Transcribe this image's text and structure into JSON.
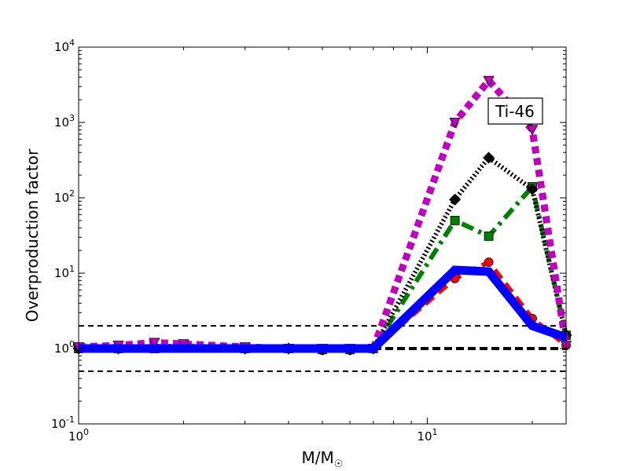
{
  "chart_data": {
    "type": "line",
    "title": "",
    "xlabel": "M/M",
    "xlabel_subscript": "☉",
    "ylabel": "Overproduction factor",
    "x_scale": "log",
    "y_scale": "log",
    "xlim": [
      1,
      25
    ],
    "ylim": [
      0.1,
      10000
    ],
    "x_ticks": [
      {
        "value": 1,
        "base": "10",
        "exp": "0"
      },
      {
        "value": 10,
        "base": "10",
        "exp": "1"
      }
    ],
    "y_ticks": [
      {
        "value": 0.1,
        "base": "10",
        "exp": "-1"
      },
      {
        "value": 1,
        "base": "10",
        "exp": "0"
      },
      {
        "value": 10,
        "base": "10",
        "exp": "1"
      },
      {
        "value": 100,
        "base": "10",
        "exp": "2"
      },
      {
        "value": 1000,
        "base": "10",
        "exp": "3"
      },
      {
        "value": 10000,
        "base": "10",
        "exp": "4"
      }
    ],
    "annotation": "Ti-46",
    "grid": false,
    "reference_lines": [
      {
        "y": 2.0,
        "style": "dashed"
      },
      {
        "y": 1.0,
        "style": "dashed-thick"
      },
      {
        "y": 0.5,
        "style": "dashed"
      }
    ],
    "series": [
      {
        "color": "#ff0000",
        "style": "dashed",
        "marker": "circle",
        "x": [
          1,
          1.3,
          1.65,
          2,
          3,
          4,
          5,
          6,
          7,
          12,
          15,
          20,
          25
        ],
        "y": [
          1.0,
          1.0,
          1.05,
          1.05,
          1.0,
          1.0,
          0.95,
          0.95,
          1.0,
          8.5,
          14,
          2.5,
          1.1
        ]
      },
      {
        "color": "#008000",
        "style": "dashdot",
        "marker": "square",
        "x": [
          1,
          1.3,
          1.65,
          2,
          3,
          4,
          5,
          6,
          7,
          12,
          15,
          20,
          25
        ],
        "y": [
          1.0,
          1.0,
          1.0,
          1.05,
          1.0,
          1.0,
          0.97,
          0.97,
          1.0,
          50,
          31,
          140,
          1.5
        ]
      },
      {
        "color": "#000000",
        "style": "dotted",
        "marker": "diamond",
        "x": [
          1,
          1.3,
          1.65,
          2,
          3,
          4,
          5,
          6,
          7,
          12,
          15,
          20,
          25
        ],
        "y": [
          1.0,
          1.0,
          1.05,
          1.1,
          1.0,
          1.0,
          0.97,
          0.97,
          1.0,
          95,
          340,
          130,
          1.5
        ]
      },
      {
        "color": "#bf00bf",
        "style": "dotted-thick",
        "marker": "triangle-down",
        "x": [
          1,
          1.3,
          1.65,
          2,
          3,
          4,
          5,
          6,
          7,
          12,
          15,
          20,
          25
        ],
        "y": [
          1.05,
          1.1,
          1.2,
          1.15,
          1.05,
          1.0,
          1.0,
          1.0,
          1.0,
          1000,
          3600,
          800,
          1.1
        ]
      },
      {
        "color": "#0000ff",
        "style": "solid-thick",
        "marker": "none",
        "x": [
          1,
          1.3,
          1.65,
          2,
          3,
          4,
          5,
          6,
          7,
          12,
          15,
          20,
          25
        ],
        "y": [
          1.0,
          1.0,
          1.0,
          1.0,
          1.0,
          1.0,
          1.0,
          1.0,
          1.0,
          11,
          10.5,
          2.0,
          1.4
        ]
      }
    ]
  }
}
